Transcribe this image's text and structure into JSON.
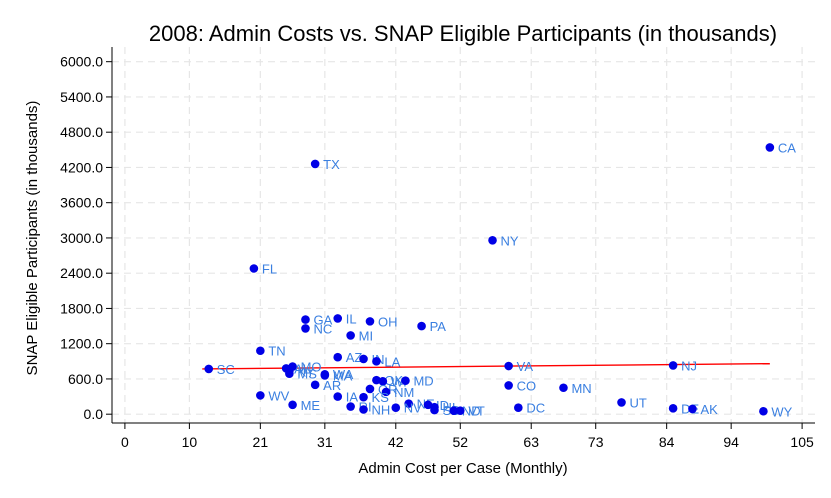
{
  "chart_data": {
    "type": "scatter",
    "title": "2008: Admin Costs vs. SNAP Eligible Participants (in thousands)",
    "xlabel": "Admin Cost per Case (Monthly)",
    "ylabel": "SNAP Eligible Participants (in thousands)",
    "xlim": [
      -2,
      107
    ],
    "ylim": [
      -150,
      6250
    ],
    "x_ticks": [
      0,
      10,
      21,
      31,
      42,
      52,
      63,
      73,
      84,
      94,
      105
    ],
    "y_ticks": [
      0,
      600,
      1200,
      1800,
      2400,
      3000,
      3600,
      4200,
      4800,
      5400,
      6000
    ],
    "y_tick_labels": [
      "0.0",
      "600.0",
      "1200.0",
      "1800.0",
      "2400.0",
      "3000.0",
      "3600.0",
      "4200.0",
      "4800.0",
      "5400.0",
      "6000.0"
    ],
    "grid": true,
    "point_color": "#0000e6",
    "label_color": "#3a7fe0",
    "fit_line_color": "#ff0000",
    "fit_line": {
      "x": [
        12,
        100
      ],
      "y": [
        770,
        860
      ]
    },
    "points": [
      {
        "label": "CA",
        "x": 100,
        "y": 4540
      },
      {
        "label": "TX",
        "x": 29.5,
        "y": 4260
      },
      {
        "label": "NY",
        "x": 57,
        "y": 2960
      },
      {
        "label": "FL",
        "x": 20,
        "y": 2480
      },
      {
        "label": "IL",
        "x": 33,
        "y": 1630
      },
      {
        "label": "GA",
        "x": 28,
        "y": 1610
      },
      {
        "label": "OH",
        "x": 38,
        "y": 1580
      },
      {
        "label": "PA",
        "x": 46,
        "y": 1500
      },
      {
        "label": "NC",
        "x": 28,
        "y": 1460
      },
      {
        "label": "MI",
        "x": 35,
        "y": 1340
      },
      {
        "label": "TN",
        "x": 21,
        "y": 1080
      },
      {
        "label": "AZ",
        "x": 33,
        "y": 970
      },
      {
        "label": "IN",
        "x": 37,
        "y": 940
      },
      {
        "label": "LA",
        "x": 39,
        "y": 900
      },
      {
        "label": "NJ",
        "x": 85,
        "y": 830
      },
      {
        "label": "VA",
        "x": 59.5,
        "y": 820
      },
      {
        "label": "SC",
        "x": 13,
        "y": 770
      },
      {
        "label": "MO",
        "x": 26,
        "y": 810
      },
      {
        "label": "AL",
        "x": 25,
        "y": 780
      },
      {
        "label": "KY",
        "x": 25.5,
        "y": 730
      },
      {
        "label": "MS",
        "x": 25.5,
        "y": 690
      },
      {
        "label": "WA",
        "x": 31,
        "y": 680
      },
      {
        "label": "MA",
        "x": 31,
        "y": 660
      },
      {
        "label": "OK",
        "x": 39,
        "y": 580
      },
      {
        "label": "WI",
        "x": 40,
        "y": 560
      },
      {
        "label": "MD",
        "x": 43.5,
        "y": 570
      },
      {
        "label": "AR",
        "x": 29.5,
        "y": 500
      },
      {
        "label": "CO",
        "x": 59.5,
        "y": 490
      },
      {
        "label": "MN",
        "x": 68,
        "y": 450
      },
      {
        "label": "OR",
        "x": 38,
        "y": 430
      },
      {
        "label": "NM",
        "x": 40.5,
        "y": 380
      },
      {
        "label": "WV",
        "x": 21,
        "y": 320
      },
      {
        "label": "IA",
        "x": 33,
        "y": 300
      },
      {
        "label": "KS",
        "x": 37,
        "y": 290
      },
      {
        "label": "UT",
        "x": 77,
        "y": 200
      },
      {
        "label": "ME",
        "x": 26,
        "y": 160
      },
      {
        "label": "NE",
        "x": 44,
        "y": 180
      },
      {
        "label": "ID",
        "x": 47,
        "y": 160
      },
      {
        "label": "SD",
        "x": 48,
        "y": 70
      },
      {
        "label": "DC",
        "x": 61,
        "y": 110
      },
      {
        "label": "NV",
        "x": 42,
        "y": 110
      },
      {
        "label": "RI",
        "x": 35,
        "y": 130
      },
      {
        "label": "NH",
        "x": 37,
        "y": 80
      },
      {
        "label": "HI",
        "x": 48,
        "y": 120
      },
      {
        "label": "DE",
        "x": 85,
        "y": 100
      },
      {
        "label": "AK",
        "x": 88,
        "y": 90
      },
      {
        "label": "ND",
        "x": 51,
        "y": 60
      },
      {
        "label": "VT",
        "x": 52,
        "y": 60
      },
      {
        "label": "WY",
        "x": 99,
        "y": 50
      }
    ]
  }
}
